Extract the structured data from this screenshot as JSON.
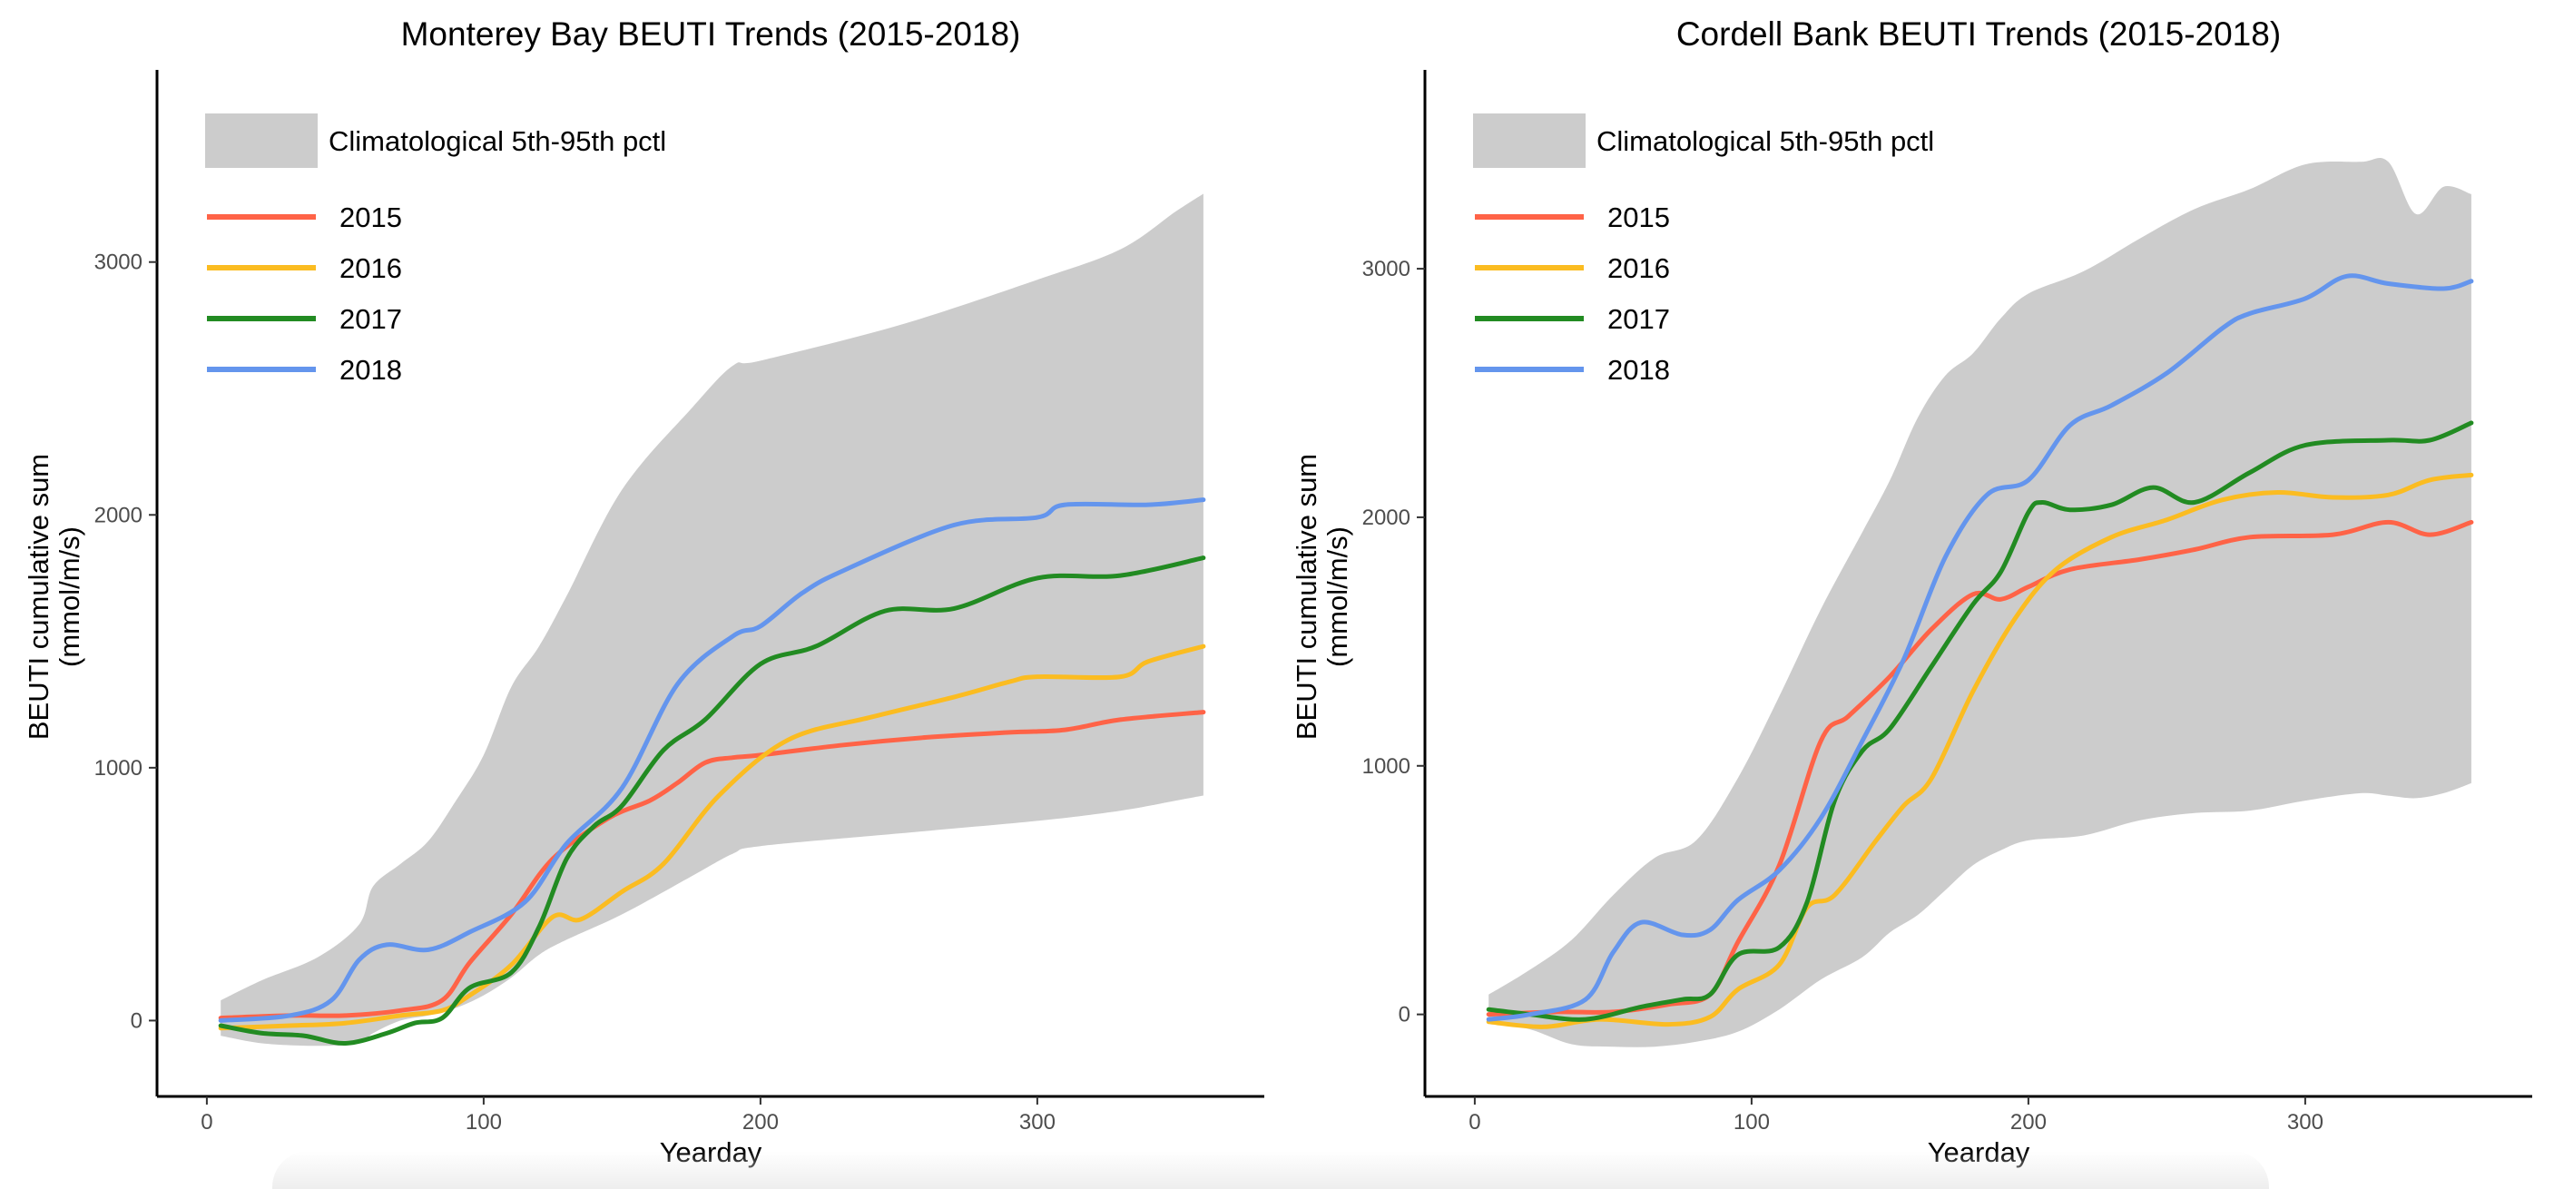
{
  "colors": {
    "band": "#cccccc",
    "2015": "#ff6347",
    "2016": "#fbbc21",
    "2017": "#228b22",
    "2018": "#6495ed"
  },
  "chart_data": [
    {
      "type": "line",
      "title": "Monterey Bay BEUTI Trends (2015-2018)",
      "xlabel": "Yearday",
      "ylabel_line1": "BEUTI cumulative sum",
      "ylabel_line2": "(mmol/m/s)",
      "xlim": [
        -18,
        382
      ],
      "ylim": [
        -300,
        3760
      ],
      "xticks": [
        0,
        100,
        200,
        300
      ],
      "yticks": [
        0,
        1000,
        2000,
        3000
      ],
      "grid": false,
      "legend_position": "top-left",
      "band": {
        "label": "Climatological 5th-95th pctl",
        "x": [
          5,
          20,
          40,
          55,
          60,
          70,
          80,
          90,
          100,
          110,
          120,
          130,
          150,
          175,
          190,
          200,
          250,
          300,
          330,
          350,
          360
        ],
        "upper": [
          80,
          160,
          250,
          380,
          530,
          620,
          710,
          870,
          1050,
          1320,
          1480,
          1680,
          2100,
          2420,
          2590,
          2610,
          2750,
          2930,
          3050,
          3200,
          3270
        ],
        "lower": [
          -60,
          -90,
          -100,
          -90,
          -50,
          0,
          20,
          50,
          100,
          170,
          260,
          320,
          420,
          570,
          660,
          690,
          740,
          790,
          830,
          870,
          890
        ]
      },
      "series": [
        {
          "name": "2015",
          "x": [
            5,
            30,
            50,
            70,
            85,
            95,
            110,
            125,
            145,
            160,
            170,
            180,
            190,
            200,
            230,
            260,
            290,
            310,
            330,
            360
          ],
          "values": [
            10,
            20,
            20,
            40,
            80,
            230,
            420,
            640,
            800,
            870,
            940,
            1020,
            1040,
            1050,
            1090,
            1120,
            1140,
            1150,
            1190,
            1220
          ]
        },
        {
          "name": "2016",
          "x": [
            5,
            30,
            50,
            70,
            85,
            95,
            110,
            125,
            135,
            150,
            165,
            185,
            210,
            240,
            270,
            290,
            300,
            330,
            340,
            360
          ],
          "values": [
            -30,
            -20,
            -10,
            20,
            40,
            100,
            220,
            410,
            400,
            510,
            620,
            890,
            1110,
            1200,
            1280,
            1340,
            1360,
            1360,
            1420,
            1480
          ]
        },
        {
          "name": "2017",
          "x": [
            5,
            20,
            35,
            50,
            65,
            75,
            85,
            95,
            110,
            120,
            130,
            140,
            150,
            165,
            180,
            200,
            220,
            245,
            270,
            300,
            330,
            360
          ],
          "values": [
            -20,
            -50,
            -60,
            -90,
            -50,
            -10,
            10,
            130,
            190,
            370,
            640,
            770,
            850,
            1070,
            1190,
            1410,
            1480,
            1620,
            1630,
            1750,
            1760,
            1830
          ]
        },
        {
          "name": "2018",
          "x": [
            5,
            30,
            45,
            55,
            65,
            80,
            95,
            115,
            130,
            150,
            170,
            190,
            200,
            215,
            230,
            270,
            300,
            310,
            340,
            360
          ],
          "values": [
            0,
            20,
            80,
            240,
            300,
            280,
            350,
            470,
            700,
            920,
            1330,
            1520,
            1560,
            1690,
            1780,
            1960,
            1990,
            2040,
            2040,
            2060
          ]
        }
      ]
    },
    {
      "type": "line",
      "title": "Cordell Bank BEUTI Trends (2015-2018)",
      "xlabel": "Yearday",
      "ylabel_line1": "BEUTI cumulative sum",
      "ylabel_line2": "(mmol/m/s)",
      "xlim": [
        -18,
        382
      ],
      "ylim": [
        -330,
        3800
      ],
      "xticks": [
        0,
        100,
        200,
        300
      ],
      "yticks": [
        0,
        1000,
        2000,
        3000
      ],
      "grid": false,
      "legend_position": "top-left",
      "band": {
        "label": "Climatological 5th-95th pctl",
        "x": [
          5,
          20,
          35,
          50,
          65,
          80,
          95,
          110,
          125,
          140,
          150,
          160,
          170,
          180,
          190,
          200,
          220,
          240,
          260,
          280,
          300,
          320,
          330,
          340,
          350,
          360
        ],
        "upper": [
          80,
          180,
          300,
          480,
          630,
          700,
          950,
          1280,
          1630,
          1940,
          2150,
          2400,
          2570,
          2660,
          2800,
          2900,
          2990,
          3120,
          3240,
          3320,
          3420,
          3430,
          3430,
          3220,
          3330,
          3300
        ],
        "lower": [
          -30,
          -60,
          -120,
          -130,
          -130,
          -110,
          -70,
          20,
          140,
          230,
          330,
          400,
          500,
          600,
          660,
          700,
          720,
          780,
          810,
          820,
          860,
          890,
          880,
          870,
          890,
          930
        ]
      },
      "series": [
        {
          "name": "2015",
          "x": [
            5,
            30,
            50,
            70,
            85,
            95,
            110,
            125,
            135,
            150,
            165,
            180,
            190,
            200,
            215,
            240,
            260,
            280,
            310,
            330,
            345,
            360
          ],
          "values": [
            0,
            10,
            10,
            40,
            80,
            290,
            600,
            1100,
            1200,
            1360,
            1550,
            1690,
            1670,
            1720,
            1790,
            1830,
            1870,
            1920,
            1930,
            1980,
            1930,
            1980
          ]
        },
        {
          "name": "2016",
          "x": [
            5,
            25,
            45,
            70,
            85,
            95,
            110,
            120,
            130,
            145,
            155,
            165,
            180,
            195,
            210,
            230,
            250,
            270,
            290,
            310,
            330,
            345,
            360
          ],
          "values": [
            -30,
            -50,
            -20,
            -40,
            -10,
            100,
            200,
            430,
            480,
            700,
            840,
            950,
            1300,
            1590,
            1790,
            1920,
            1990,
            2070,
            2100,
            2080,
            2090,
            2150,
            2170
          ]
        },
        {
          "name": "2017",
          "x": [
            5,
            20,
            40,
            60,
            75,
            85,
            95,
            110,
            120,
            130,
            140,
            150,
            165,
            180,
            190,
            200,
            205,
            215,
            230,
            245,
            260,
            280,
            300,
            330,
            345,
            360
          ],
          "values": [
            20,
            0,
            -20,
            30,
            60,
            80,
            240,
            270,
            450,
            860,
            1060,
            1150,
            1400,
            1650,
            1780,
            2020,
            2060,
            2030,
            2050,
            2120,
            2060,
            2180,
            2290,
            2310,
            2310,
            2380
          ]
        },
        {
          "name": "2018",
          "x": [
            5,
            20,
            40,
            50,
            60,
            75,
            85,
            95,
            110,
            125,
            140,
            155,
            170,
            185,
            200,
            215,
            230,
            250,
            270,
            280,
            300,
            315,
            330,
            350,
            360
          ],
          "values": [
            -20,
            0,
            60,
            250,
            370,
            320,
            340,
            460,
            580,
            790,
            1100,
            1430,
            1840,
            2090,
            2150,
            2370,
            2450,
            2580,
            2760,
            2820,
            2880,
            2970,
            2940,
            2920,
            2950
          ]
        }
      ]
    }
  ]
}
